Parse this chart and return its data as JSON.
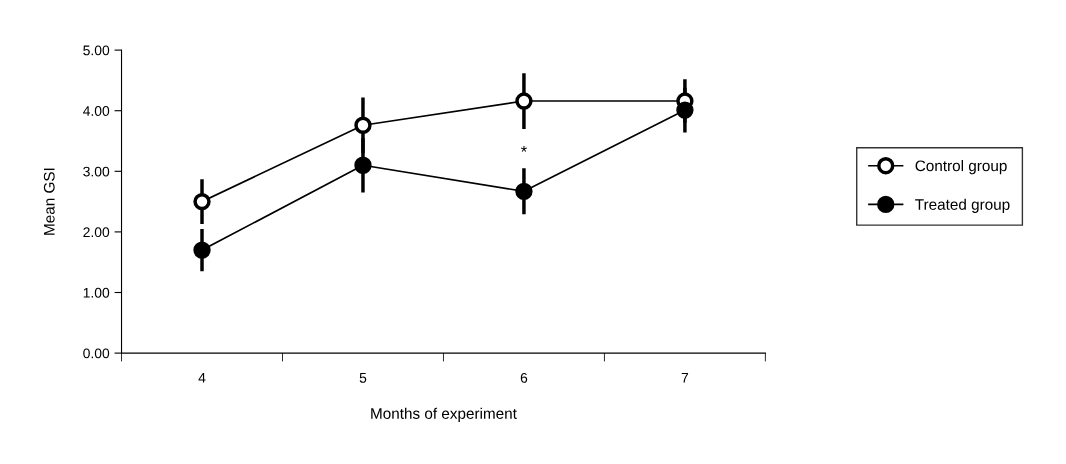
{
  "chart_data": {
    "type": "line",
    "xlabel": "Months of experiment",
    "ylabel": "Mean GSI",
    "categories": [
      "4",
      "5",
      "6",
      "7"
    ],
    "series": [
      {
        "name": "Control group",
        "color": "#000000",
        "values": [
          2.5,
          3.76,
          4.16,
          4.16
        ],
        "errors": [
          0.37,
          0.46,
          0.46,
          0.36
        ]
      },
      {
        "name": "Treated group",
        "color": "#000000",
        "values": [
          1.7,
          3.1,
          2.67,
          4.01
        ],
        "errors": [
          0.35,
          0.45,
          0.38,
          0.37
        ]
      }
    ],
    "ylim": [
      0,
      5
    ],
    "yticks": [
      {
        "value": 0,
        "label": "0.00"
      },
      {
        "value": 1,
        "label": "1.00"
      },
      {
        "value": 2,
        "label": "2.00"
      },
      {
        "value": 3,
        "label": "3.00"
      },
      {
        "value": 4,
        "label": "4.00"
      },
      {
        "value": 5,
        "label": "5.00"
      }
    ],
    "annotations": [
      "*"
    ],
    "marker": "circle",
    "line_style": "solid",
    "grid": false,
    "legend": "right"
  }
}
